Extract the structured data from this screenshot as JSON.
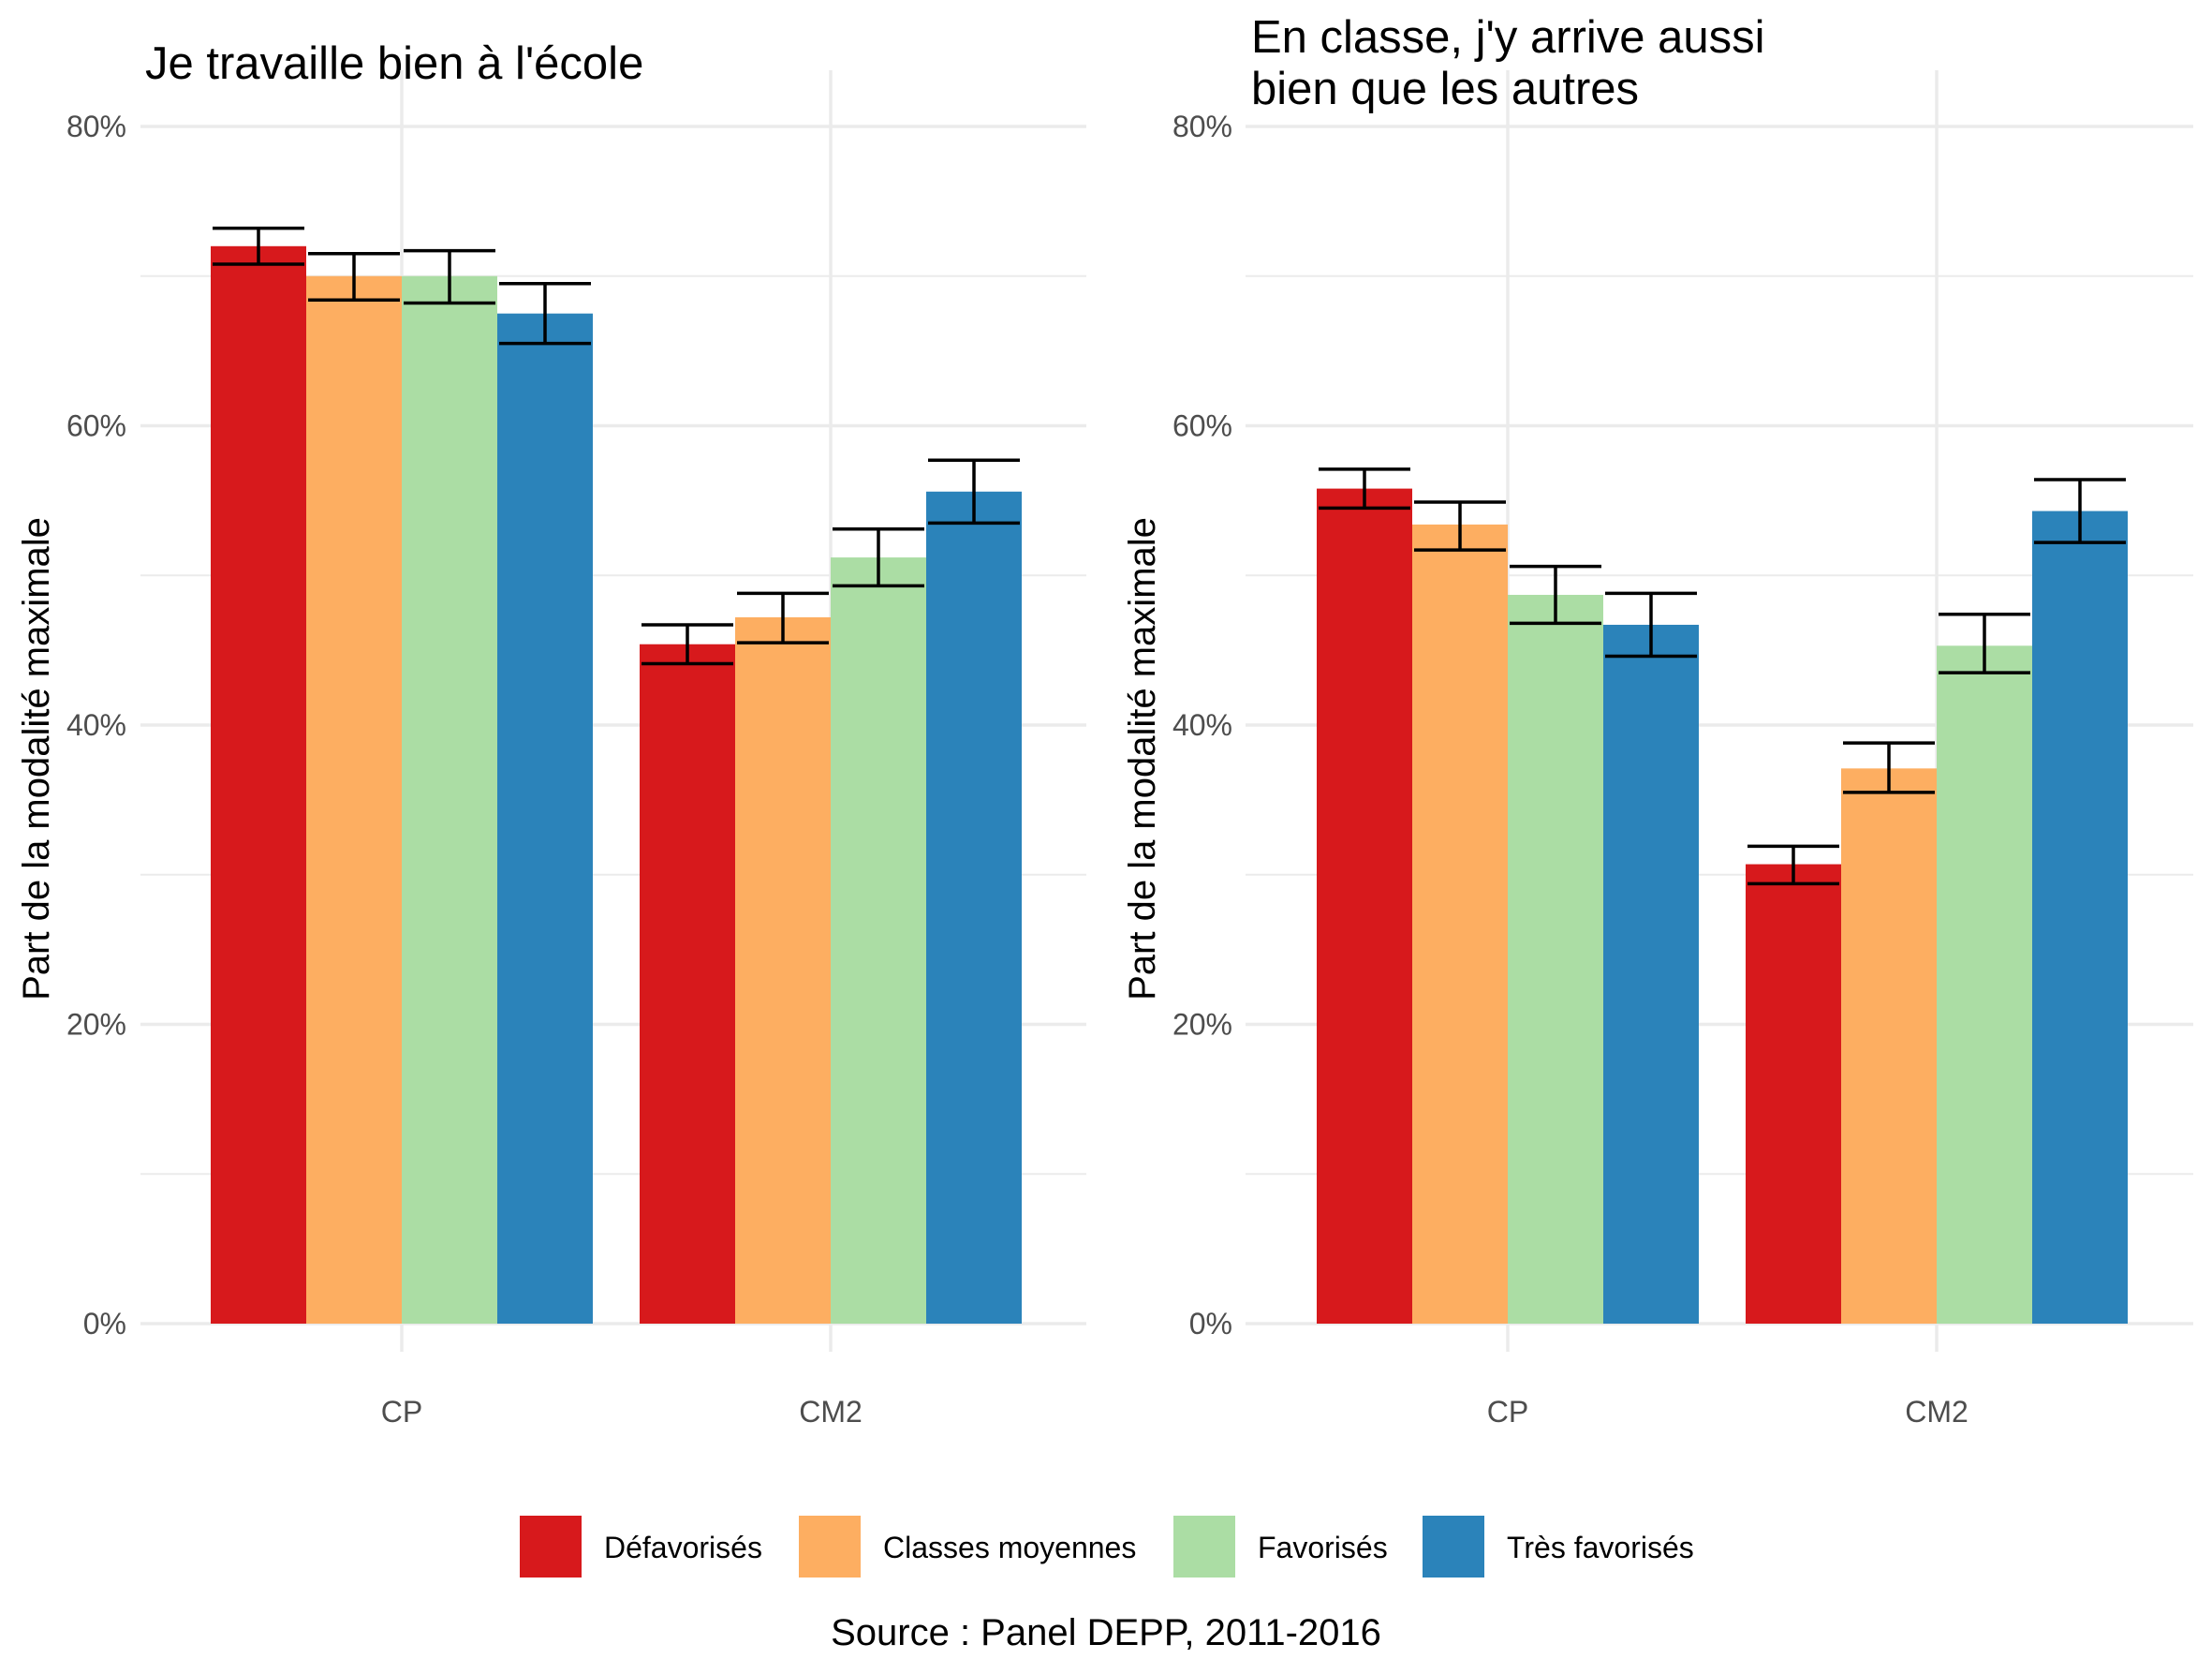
{
  "chart_data": [
    {
      "type": "bar",
      "title": "Je travaille bien à l'école",
      "xlabel": "",
      "ylabel": "Part de la modalité maximale",
      "ylim": [
        0,
        0.84
      ],
      "yticks": [
        0,
        0.2,
        0.4,
        0.6,
        0.8
      ],
      "ytick_labels": [
        "0%",
        "20%",
        "40%",
        "60%",
        "80%"
      ],
      "categories": [
        "CP",
        "CM2"
      ],
      "series": [
        {
          "name": "Défavorisés",
          "values": [
            0.72,
            0.454
          ],
          "err_low": [
            0.708,
            0.441
          ],
          "err_high": [
            0.732,
            0.467
          ]
        },
        {
          "name": "Classes moyennes",
          "values": [
            0.7,
            0.472
          ],
          "err_low": [
            0.684,
            0.455
          ],
          "err_high": [
            0.715,
            0.488
          ]
        },
        {
          "name": "Favorisés",
          "values": [
            0.7,
            0.512
          ],
          "err_low": [
            0.682,
            0.493
          ],
          "err_high": [
            0.717,
            0.531
          ]
        },
        {
          "name": "Très favorisés",
          "values": [
            0.675,
            0.556
          ],
          "err_low": [
            0.655,
            0.535
          ],
          "err_high": [
            0.695,
            0.577
          ]
        }
      ],
      "grid": true
    },
    {
      "type": "bar",
      "title": "En classe, j'y arrive aussi\nbien que les autres",
      "xlabel": "",
      "ylabel": "Part de la modalité maximale",
      "ylim": [
        0,
        0.84
      ],
      "yticks": [
        0,
        0.2,
        0.4,
        0.6,
        0.8
      ],
      "ytick_labels": [
        "0%",
        "20%",
        "40%",
        "60%",
        "80%"
      ],
      "categories": [
        "CP",
        "CM2"
      ],
      "series": [
        {
          "name": "Défavorisés",
          "values": [
            0.558,
            0.307
          ],
          "err_low": [
            0.545,
            0.294
          ],
          "err_high": [
            0.571,
            0.319
          ]
        },
        {
          "name": "Classes moyennes",
          "values": [
            0.534,
            0.371
          ],
          "err_low": [
            0.517,
            0.355
          ],
          "err_high": [
            0.549,
            0.388
          ]
        },
        {
          "name": "Favorisés",
          "values": [
            0.487,
            0.453
          ],
          "err_low": [
            0.468,
            0.435
          ],
          "err_high": [
            0.506,
            0.474
          ]
        },
        {
          "name": "Très favorisés",
          "values": [
            0.467,
            0.543
          ],
          "err_low": [
            0.446,
            0.522
          ],
          "err_high": [
            0.488,
            0.564
          ]
        }
      ],
      "grid": true
    }
  ],
  "legend": {
    "placement": "bottom",
    "items": [
      {
        "label": "Défavorisés",
        "color": "#d7191c"
      },
      {
        "label": "Classes moyennes",
        "color": "#fdae61"
      },
      {
        "label": "Favorisés",
        "color": "#abdda4"
      },
      {
        "label": "Très favorisés",
        "color": "#2b83ba"
      }
    ]
  },
  "caption": "Source : Panel DEPP, 2011-2016"
}
